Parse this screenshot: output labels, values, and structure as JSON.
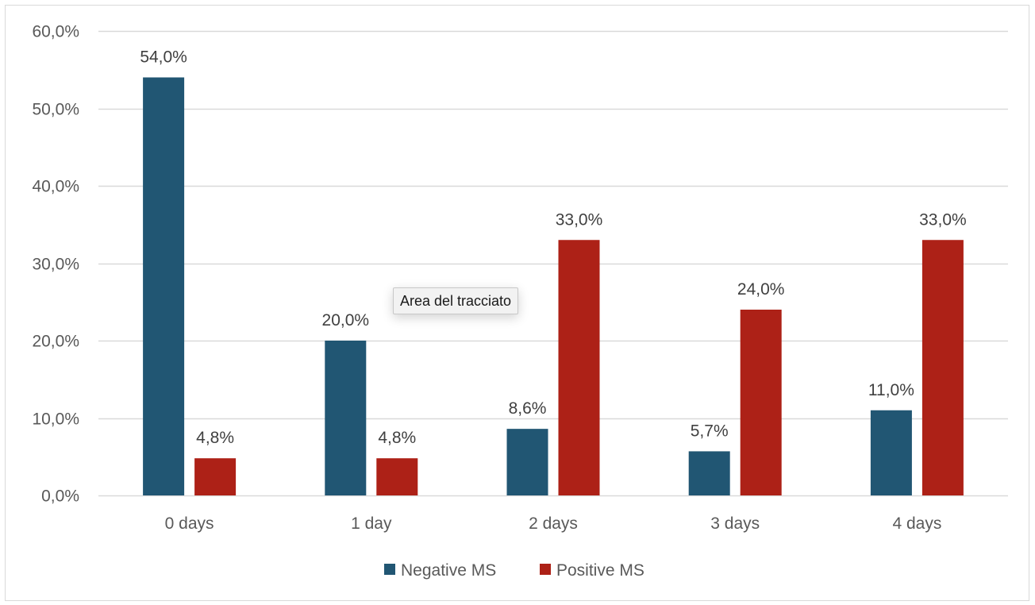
{
  "chart_data": {
    "type": "bar",
    "title": "",
    "xlabel": "",
    "ylabel": "",
    "categories": [
      "0 days",
      "1 day",
      "2 days",
      "3 days",
      "4 days"
    ],
    "series": [
      {
        "name": "Negative MS",
        "color": "#215673",
        "values": [
          54.0,
          20.0,
          8.6,
          5.7,
          11.0
        ],
        "labels": [
          "54,0%",
          "20,0%",
          "8,6%",
          "5,7%",
          "11,0%"
        ]
      },
      {
        "name": "Positive MS",
        "color": "#AD2117",
        "values": [
          4.8,
          4.8,
          33.0,
          24.0,
          33.0
        ],
        "labels": [
          "4,8%",
          "4,8%",
          "33,0%",
          "24,0%",
          "33,0%"
        ]
      }
    ],
    "ylim": [
      0,
      60
    ],
    "yticks": [
      0,
      10,
      20,
      30,
      40,
      50,
      60
    ],
    "ytick_labels": [
      "0,0%",
      "10,0%",
      "20,0%",
      "30,0%",
      "40,0%",
      "50,0%",
      "60,0%"
    ],
    "grid": true,
    "gridline_color": "#d9d9d9",
    "legend_position": "bottom"
  },
  "tooltip": {
    "text": "Area del tracciato"
  }
}
